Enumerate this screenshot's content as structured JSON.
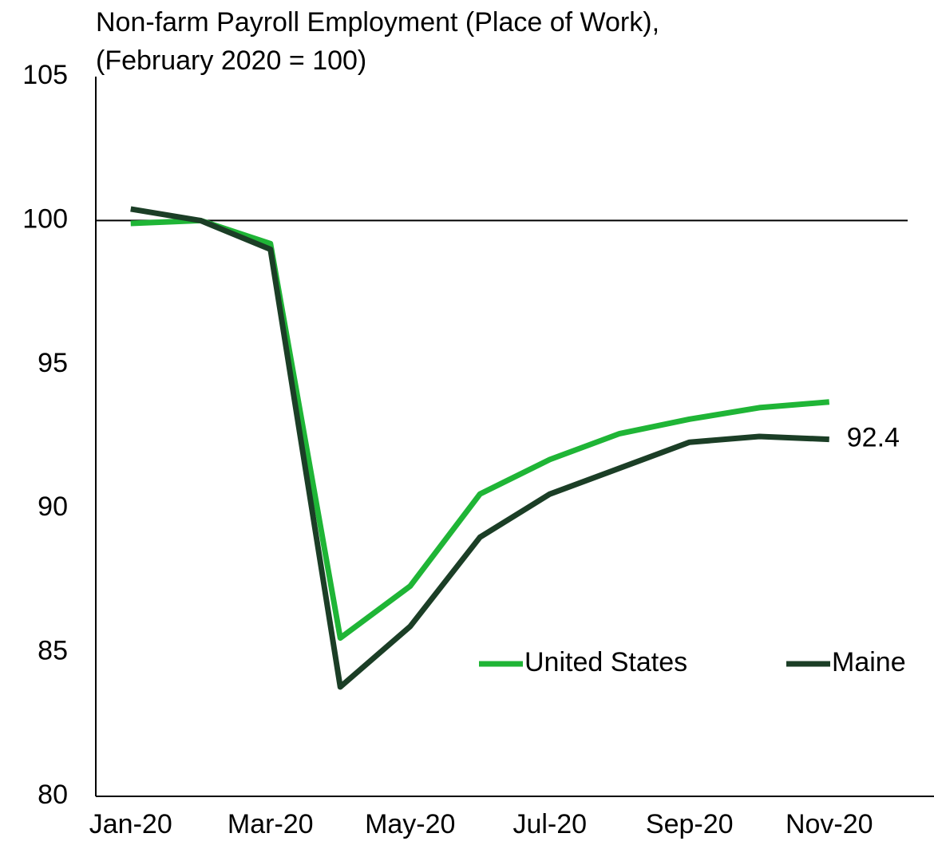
{
  "chart_data": {
    "type": "line",
    "title": "Non-farm Payroll Employment (Place of Work),",
    "subtitle": "(February 2020 = 100)",
    "categories": [
      "Jan-20",
      null,
      "Mar-20",
      null,
      "May-20",
      null,
      "Jul-20",
      null,
      "Sep-20",
      null,
      "Nov-20",
      null
    ],
    "series": [
      {
        "name": "United States",
        "color": "#1fb536",
        "values": [
          99.9,
          100,
          99.2,
          85.5,
          87.3,
          90.5,
          91.7,
          92.6,
          93.1,
          93.5,
          93.7,
          null
        ]
      },
      {
        "name": "Maine",
        "color": "#1b3e26",
        "values": [
          100.4,
          100,
          99.0,
          83.8,
          85.9,
          89.0,
          90.5,
          91.4,
          92.3,
          92.5,
          92.4,
          null
        ]
      }
    ],
    "ylim": [
      80,
      105
    ],
    "yticks": [
      80,
      85,
      90,
      95,
      100,
      105
    ],
    "reference_line": 100,
    "grid": false,
    "legend": "lower right"
  }
}
